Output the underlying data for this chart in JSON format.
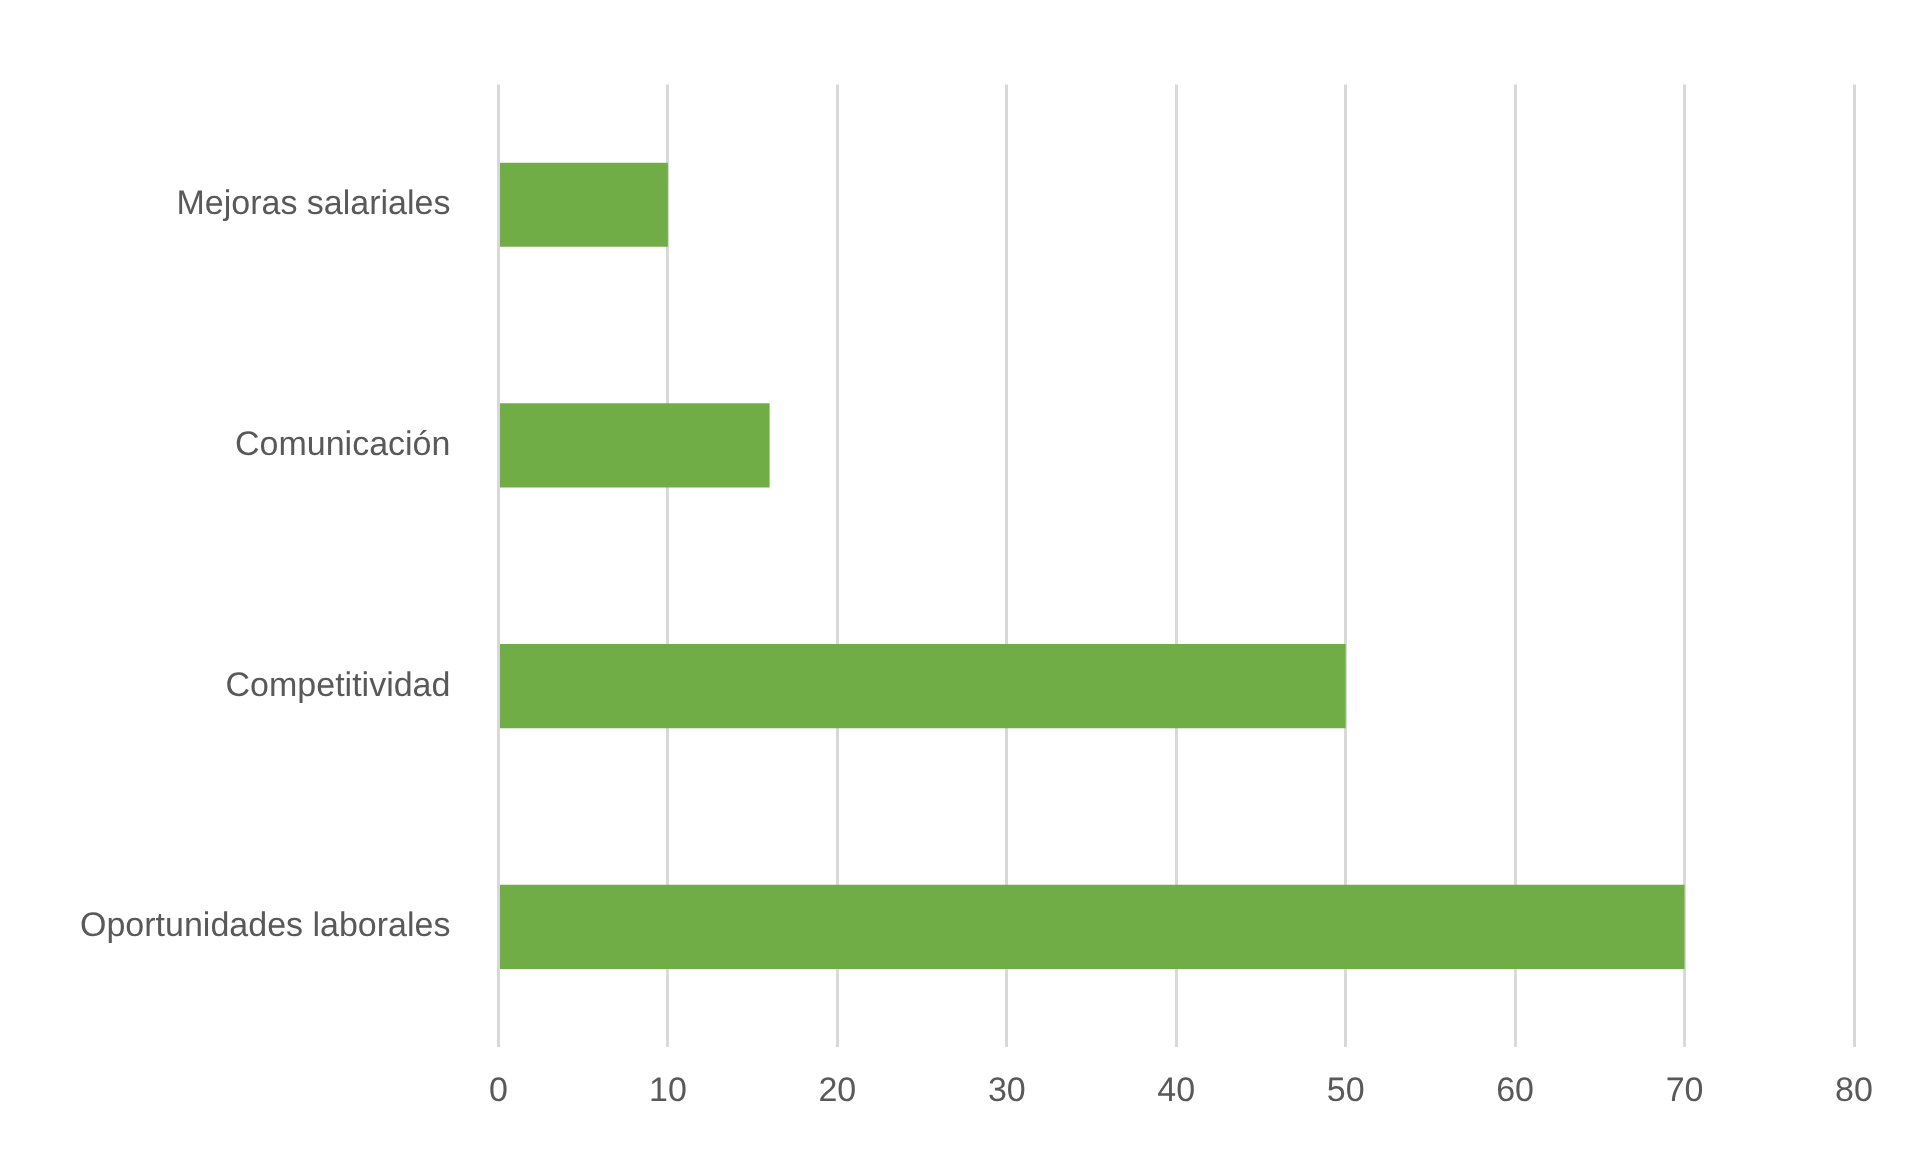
{
  "chart_data": {
    "type": "bar",
    "orientation": "horizontal",
    "categories": [
      "Mejoras salariales",
      "Comunicación",
      "Competitividad",
      "Oportunidades laborales"
    ],
    "values": [
      10,
      16,
      50,
      70
    ],
    "color": "#70ad47",
    "xlim": [
      0,
      80
    ],
    "xticks": [
      0,
      10,
      20,
      30,
      40,
      50,
      60,
      70,
      80
    ],
    "grid": "x",
    "legend": false
  }
}
